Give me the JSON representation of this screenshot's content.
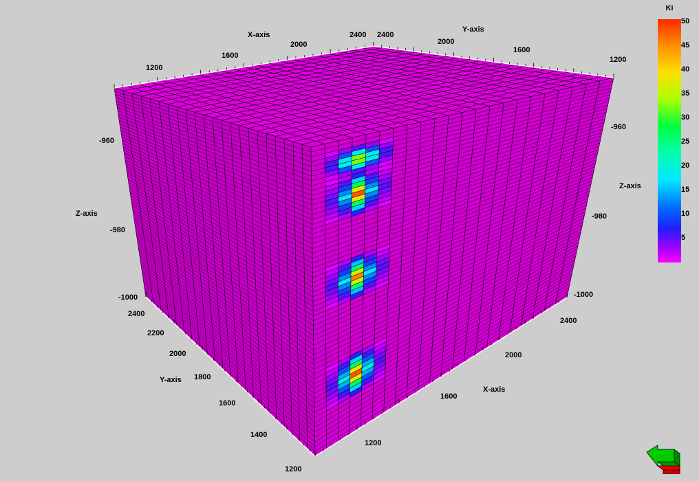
{
  "axes": {
    "x_title": "X-axis",
    "y_title": "Y-axis",
    "z_title": "Z-axis",
    "top_x_ticks": [
      "1200",
      "1600",
      "2000",
      "2400"
    ],
    "top_y_ticks": [
      "2400",
      "2000",
      "1600",
      "1200"
    ],
    "left_z_ticks": [
      "-960",
      "-980",
      "-1000"
    ],
    "right_z_ticks": [
      "-960",
      "-980",
      "-1000"
    ],
    "left_y_ticks": [
      "2400",
      "2200",
      "2000",
      "1800",
      "1600",
      "1400",
      "1200"
    ],
    "bottom_x_ticks": [
      "1200",
      "1600",
      "2000",
      "2400"
    ]
  },
  "legend": {
    "title": "Ki",
    "ticks": [
      "50",
      "45",
      "40",
      "35",
      "30",
      "25",
      "20",
      "15",
      "10",
      "5"
    ]
  },
  "colors": {
    "background": "#cdcdcd",
    "base_cell": "#dd00dd",
    "grid_line": "#000000"
  },
  "anomalies": [
    {
      "rows": [
        0,
        2
      ],
      "peak_values": [
        10,
        25,
        40,
        25,
        10
      ]
    },
    {
      "rows": [
        2,
        5
      ],
      "peak_values": [
        8,
        20,
        48,
        20,
        8
      ]
    },
    {
      "rows": [
        8,
        11
      ],
      "peak_values": [
        8,
        20,
        46,
        20,
        8
      ]
    },
    {
      "rows": [
        15,
        18
      ],
      "peak_values": [
        8,
        22,
        48,
        22,
        8
      ]
    }
  ]
}
